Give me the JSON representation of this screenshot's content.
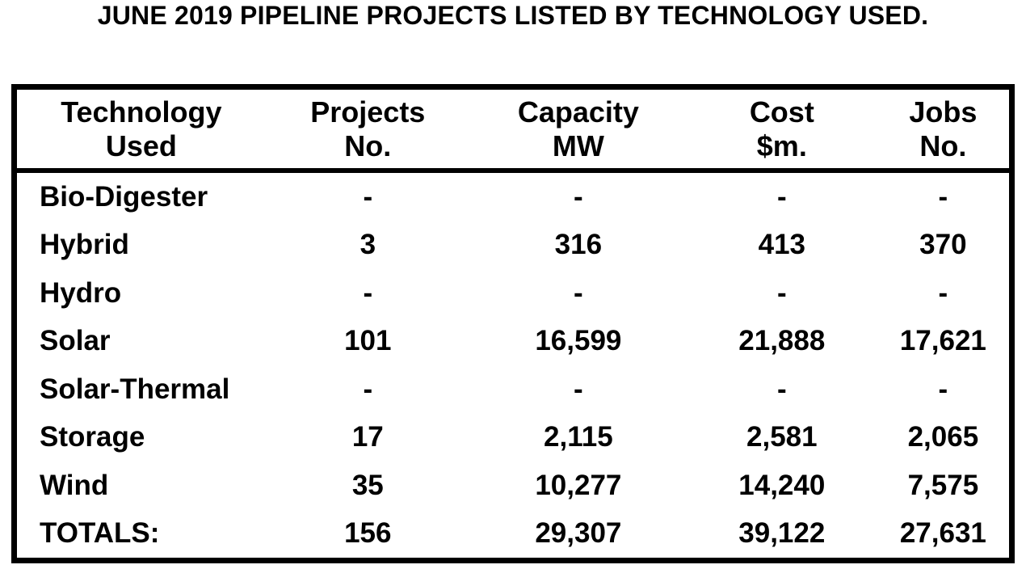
{
  "page_title": "JUNE 2019 PIPELINE PROJECTS LISTED BY TECHNOLOGY USED.",
  "colors": {
    "text": "#000000",
    "background": "#ffffff",
    "border": "#000000"
  },
  "chart_data": {
    "type": "table",
    "title": "JUNE 2019 PIPELINE PROJECTS LISTED BY TECHNOLOGY USED.",
    "column_headers": [
      {
        "line1": "Technology",
        "line2": "Used"
      },
      {
        "line1": "Projects",
        "line2": "No."
      },
      {
        "line1": "Capacity",
        "line2": "MW"
      },
      {
        "line1": "Cost",
        "line2": "$m."
      },
      {
        "line1": "Jobs",
        "line2": "No."
      }
    ],
    "rows": [
      {
        "technology": "Bio-Digester",
        "projects": "-",
        "capacity_mw": "-",
        "cost_m": "-",
        "jobs": "-"
      },
      {
        "technology": "Hybrid",
        "projects": "3",
        "capacity_mw": "316",
        "cost_m": "413",
        "jobs": "370"
      },
      {
        "technology": "Hydro",
        "projects": "-",
        "capacity_mw": "-",
        "cost_m": "-",
        "jobs": "-"
      },
      {
        "technology": "Solar",
        "projects": "101",
        "capacity_mw": "16,599",
        "cost_m": "21,888",
        "jobs": "17,621"
      },
      {
        "technology": "Solar-Thermal",
        "projects": "-",
        "capacity_mw": "-",
        "cost_m": "-",
        "jobs": "-"
      },
      {
        "technology": "Storage",
        "projects": "17",
        "capacity_mw": "2,115",
        "cost_m": "2,581",
        "jobs": "2,065"
      },
      {
        "technology": "Wind",
        "projects": "35",
        "capacity_mw": "10,277",
        "cost_m": "14,240",
        "jobs": "7,575"
      },
      {
        "technology": "TOTALS:",
        "projects": "156",
        "capacity_mw": "29,307",
        "cost_m": "39,122",
        "jobs": "27,631"
      }
    ]
  }
}
